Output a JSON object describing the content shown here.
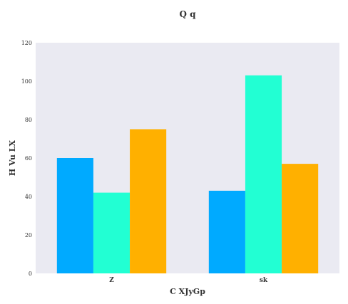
{
  "chart_data": {
    "type": "bar",
    "title": "Q q",
    "xlabel": "C XJyGp",
    "ylabel": "H Vu LX",
    "categories": [
      "Z",
      "sk"
    ],
    "series": [
      {
        "color": "#00aaff",
        "values": [
          60,
          43
        ]
      },
      {
        "color": "#22ffd3",
        "values": [
          42,
          103
        ]
      },
      {
        "color": "#ffb000",
        "values": [
          75,
          57
        ]
      }
    ],
    "ylim": [
      0,
      120
    ],
    "yticks": [
      0,
      20,
      40,
      60,
      80,
      100,
      120
    ],
    "grid": false,
    "legend": "none",
    "background": "#eaeaf2"
  }
}
